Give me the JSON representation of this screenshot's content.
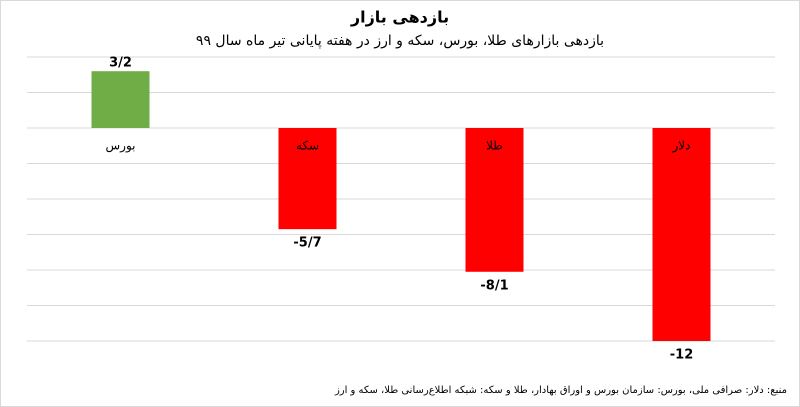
{
  "chart_data": {
    "type": "bar",
    "title": "بازدهی بازار",
    "subtitle": "بازدهی بازارهای طلا، بورس، سکه و ارز در هفته پایانی تیر ماه سال ۹۹",
    "categories": [
      "بورس",
      "سکه",
      "طلا",
      "دلار"
    ],
    "values": [
      3.2,
      -5.7,
      -8.1,
      -12
    ],
    "value_labels": [
      "3/2",
      "-5/7",
      "-8/1",
      "-12"
    ],
    "colors": [
      "#70ad47",
      "#ff0000",
      "#ff0000",
      "#ff0000"
    ],
    "ylim": [
      -12,
      4
    ],
    "yticks": [
      -12,
      -10,
      -8,
      -6,
      -4,
      -2,
      0,
      2,
      4
    ],
    "grid": true,
    "source": "منبع: دلار: صرافی ملی، بورس: سازمان بورس و اوراق بهادار، طلا و سکه: شبکه اطلاع‌رسانی طلا، سکه و ارز"
  }
}
